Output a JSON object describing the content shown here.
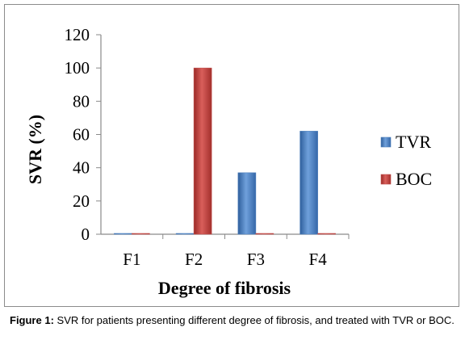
{
  "chart_data": {
    "type": "bar",
    "categories": [
      "F1",
      "F2",
      "F3",
      "F4"
    ],
    "series": [
      {
        "name": "TVR",
        "values": [
          0,
          0,
          37,
          62
        ],
        "color": "#4f81bd"
      },
      {
        "name": "BOC",
        "values": [
          0,
          100,
          0,
          0
        ],
        "color": "#c0504d"
      }
    ],
    "xlabel": "Degree of fibrosis",
    "ylabel": "SVR (%)",
    "ylim": [
      0,
      120
    ],
    "yticks": [
      0,
      20,
      40,
      60,
      80,
      100,
      120
    ],
    "grid": false,
    "legend_position": "right"
  },
  "caption": {
    "label": "Figure 1:",
    "text": " SVR for patients presenting different degree of fibrosis, and treated with TVR or BOC."
  }
}
